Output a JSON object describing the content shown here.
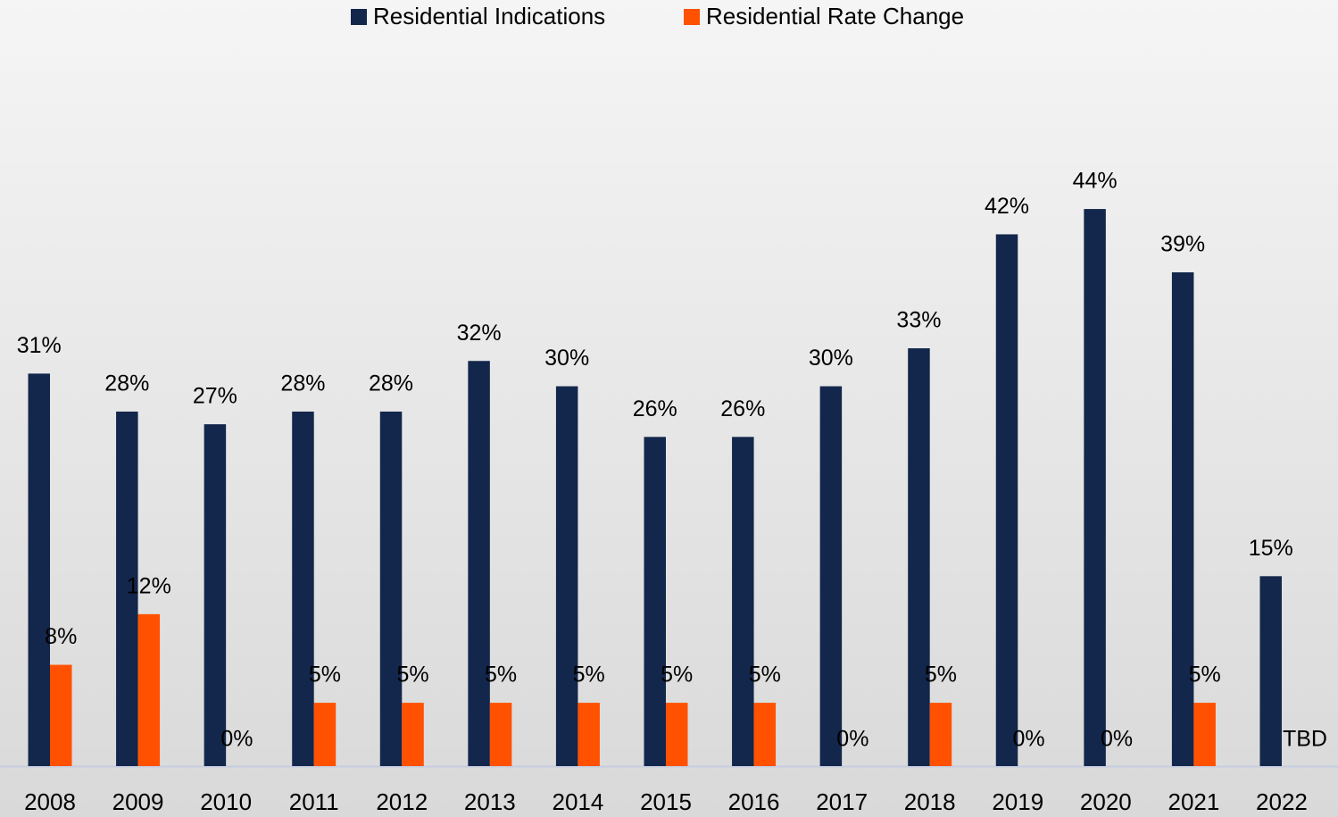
{
  "chart_data": {
    "type": "bar",
    "categories": [
      "2008",
      "2009",
      "2010",
      "2011",
      "2012",
      "2013",
      "2014",
      "2015",
      "2016",
      "2017",
      "2018",
      "2019",
      "2020",
      "2021",
      "2022"
    ],
    "series": [
      {
        "name": "Residential Indications",
        "color": "#13264b",
        "values": [
          31,
          28,
          27,
          28,
          28,
          32,
          30,
          26,
          26,
          30,
          33,
          42,
          44,
          39,
          15
        ],
        "value_labels": [
          "31%",
          "28%",
          "27%",
          "28%",
          "28%",
          "32%",
          "30%",
          "26%",
          "26%",
          "30%",
          "33%",
          "42%",
          "44%",
          "39%",
          "15%"
        ]
      },
      {
        "name": "Residential Rate Change",
        "color": "#ff5100",
        "values": [
          8,
          12,
          0,
          5,
          5,
          5,
          5,
          5,
          5,
          0,
          5,
          0,
          0,
          5,
          null
        ],
        "value_labels": [
          "8%",
          "12%",
          "0%",
          "5%",
          "5%",
          "5%",
          "5%",
          "5%",
          "5%",
          "0%",
          "5%",
          "0%",
          "0%",
          "5%",
          "TBD"
        ]
      }
    ],
    "legend": "top"
  }
}
